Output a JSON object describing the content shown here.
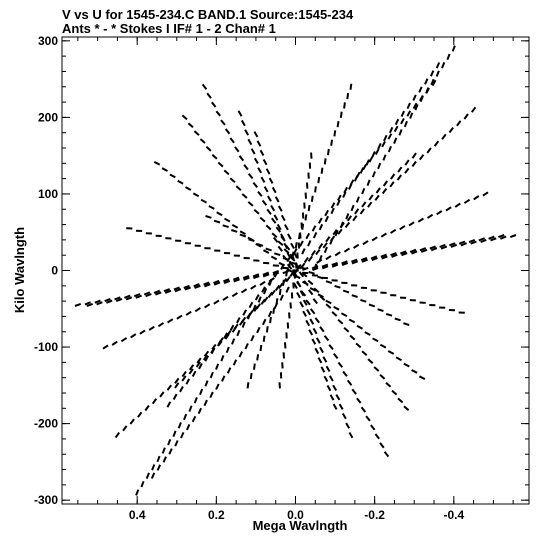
{
  "chart_data": {
    "type": "scatter",
    "title_line1": "V vs U for 1545-234.C BAND.1   Source:1545-234",
    "title_line2": "Ants * - *    Stokes I  IF# 1 - 2  Chan# 1",
    "xlabel": "Mega Wavlngth",
    "ylabel": "Kilo Wavlngth",
    "xlim": [
      0.59,
      -0.59
    ],
    "ylim": [
      -305,
      305
    ],
    "xticks": [
      0.4,
      0.2,
      0.0,
      -0.2,
      -0.4
    ],
    "xtick_labels": [
      "0.4",
      "0.2",
      "0.0",
      "-0.2",
      "-0.4"
    ],
    "yticks": [
      300,
      200,
      100,
      0,
      -100,
      -200,
      -300
    ],
    "ytick_labels": [
      "300",
      "200",
      "100",
      "0",
      "-100",
      "-200",
      "-300"
    ],
    "grid": false,
    "marker": "short dashes",
    "tracks": [
      {
        "points": [
          [
            0.4,
            -290
          ],
          [
            0.05,
            -5
          ]
        ]
      },
      {
        "points": [
          [
            -0.4,
            290
          ],
          [
            -0.05,
            5
          ]
        ]
      },
      {
        "points": [
          [
            0.55,
            -45
          ],
          [
            0.05,
            -2
          ]
        ]
      },
      {
        "points": [
          [
            -0.55,
            45
          ],
          [
            -0.05,
            2
          ]
        ]
      },
      {
        "points": [
          [
            0.48,
            -100
          ],
          [
            0.06,
            -12
          ]
        ]
      },
      {
        "points": [
          [
            -0.48,
            100
          ],
          [
            -0.06,
            12
          ]
        ]
      },
      {
        "points": [
          [
            0.36,
            -268
          ],
          [
            0.02,
            -25
          ]
        ]
      },
      {
        "points": [
          [
            -0.36,
            268
          ],
          [
            -0.02,
            25
          ]
        ]
      },
      {
        "points": [
          [
            0.23,
            240
          ],
          [
            -0.05,
            -40
          ]
        ]
      },
      {
        "points": [
          [
            -0.23,
            -240
          ],
          [
            0.05,
            40
          ]
        ]
      },
      {
        "points": [
          [
            0.1,
            178
          ],
          [
            0.0,
            20
          ]
        ]
      },
      {
        "points": [
          [
            -0.1,
            -178
          ],
          [
            0.0,
            -20
          ]
        ]
      },
      {
        "points": [
          [
            0.22,
            70
          ],
          [
            -0.28,
            -70
          ]
        ]
      },
      {
        "points": [
          [
            -0.45,
            210
          ],
          [
            0.45,
            -215
          ]
        ]
      },
      {
        "points": [
          [
            -0.35,
            245
          ],
          [
            0.32,
            -175
          ]
        ]
      },
      {
        "points": [
          [
            -0.14,
            240
          ],
          [
            0.12,
            -150
          ]
        ]
      },
      {
        "points": [
          [
            -0.04,
            150
          ],
          [
            0.04,
            -150
          ]
        ]
      },
      {
        "points": [
          [
            0.28,
            200
          ],
          [
            -0.28,
            -180
          ]
        ]
      },
      {
        "points": [
          [
            0.14,
            205
          ],
          [
            -0.14,
            -215
          ]
        ]
      },
      {
        "points": [
          [
            0.42,
            55
          ],
          [
            -0.42,
            -55
          ]
        ]
      },
      {
        "points": [
          [
            -0.52,
            45
          ],
          [
            0.52,
            -45
          ]
        ]
      },
      {
        "points": [
          [
            0.35,
            140
          ],
          [
            -0.32,
            -140
          ]
        ]
      },
      {
        "points": [
          [
            -0.3,
            150
          ],
          [
            0.3,
            -150
          ]
        ]
      }
    ]
  }
}
